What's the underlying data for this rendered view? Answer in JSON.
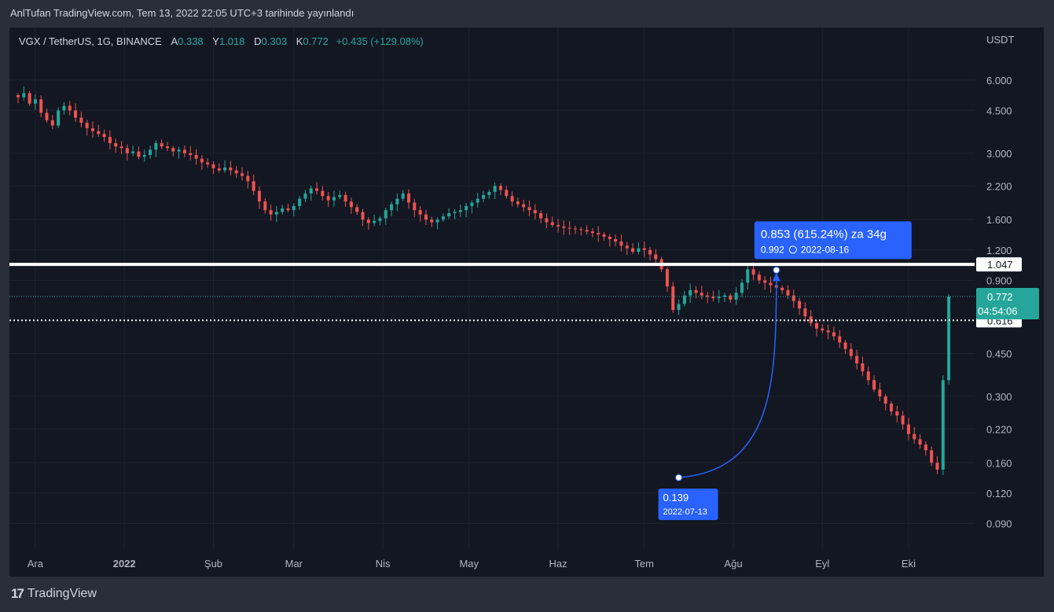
{
  "header": {
    "title": "AnlTufan TradingView.com, Tem 13, 2022 22:05 UTC+3 tarihinde yayınlandı"
  },
  "legend": {
    "symbol": "VGX / TetherUS, 1G, BINANCE",
    "open_label": "A",
    "open": "0.338",
    "high_label": "Y",
    "high": "1.018",
    "low_label": "D",
    "low": "0.303",
    "close_label": "K",
    "close": "0.772",
    "change": "+0.435 (+129.08%)"
  },
  "footer": {
    "logo_text": "TradingView",
    "logo_mark": "17"
  },
  "colors": {
    "up": "#26a69a",
    "down": "#ef5350",
    "background": "#131722",
    "grid": "#1e222d",
    "label_blue": "#2962ff",
    "text": "#d1d4dc"
  },
  "chart_data": {
    "type": "candlestick",
    "currency": "USDT",
    "scale": "log",
    "ylim": [
      0.082,
      8.5
    ],
    "y_ticks": [
      "6.000",
      "4.500",
      "3.000",
      "2.200",
      "1.600",
      "1.200",
      "0.900",
      "0.450",
      "0.300",
      "0.220",
      "0.160",
      "0.120",
      "0.090"
    ],
    "x_range": [
      "2021-11-22",
      "2022-10-24"
    ],
    "time_labels": [
      {
        "label": "Ara",
        "date": "2021-12-01"
      },
      {
        "label": "2022",
        "date": "2022-01-01"
      },
      {
        "label": "Şub",
        "date": "2022-02-01"
      },
      {
        "label": "Mar",
        "date": "2022-03-01"
      },
      {
        "label": "Nis",
        "date": "2022-04-01"
      },
      {
        "label": "May",
        "date": "2022-05-01"
      },
      {
        "label": "Haz",
        "date": "2022-06-01"
      },
      {
        "label": "Tem",
        "date": "2022-07-01"
      },
      {
        "label": "Ağu",
        "date": "2022-08-01"
      },
      {
        "label": "Eyl",
        "date": "2022-09-01"
      },
      {
        "label": "Eki",
        "date": "2022-10-01"
      }
    ],
    "start_date": "2021-11-25",
    "closes": [
      5.1,
      5.3,
      4.8,
      5.0,
      4.4,
      4.1,
      3.9,
      4.5,
      4.7,
      4.5,
      4.2,
      4.0,
      3.8,
      3.7,
      3.6,
      3.5,
      3.3,
      3.2,
      3.15,
      3.0,
      3.05,
      2.9,
      2.95,
      3.1,
      3.3,
      3.2,
      3.15,
      3.05,
      3.1,
      3.0,
      2.95,
      2.85,
      2.75,
      2.7,
      2.6,
      2.55,
      2.62,
      2.55,
      2.48,
      2.42,
      2.3,
      2.1,
      1.9,
      1.75,
      1.68,
      1.72,
      1.78,
      1.75,
      1.82,
      1.95,
      2.05,
      2.15,
      2.1,
      2.0,
      1.92,
      1.98,
      2.02,
      1.9,
      1.8,
      1.72,
      1.6,
      1.55,
      1.58,
      1.62,
      1.75,
      1.85,
      1.95,
      2.05,
      1.88,
      1.75,
      1.68,
      1.6,
      1.56,
      1.6,
      1.65,
      1.7,
      1.72,
      1.75,
      1.82,
      1.88,
      1.95,
      2.02,
      2.08,
      2.2,
      2.12,
      2.0,
      1.9,
      1.85,
      1.8,
      1.75,
      1.7,
      1.62,
      1.56,
      1.52,
      1.5,
      1.48,
      1.47,
      1.46,
      1.45,
      1.43,
      1.41,
      1.39,
      1.36,
      1.33,
      1.3,
      1.25,
      1.22,
      1.18,
      1.22,
      1.2,
      1.15,
      1.1,
      1.0,
      0.85,
      0.68,
      0.72,
      0.78,
      0.82,
      0.8,
      0.78,
      0.77,
      0.76,
      0.77,
      0.78,
      0.75,
      0.8,
      0.88,
      1.0,
      0.95,
      0.9,
      0.88,
      0.86,
      0.84,
      0.82,
      0.78,
      0.74,
      0.69,
      0.64,
      0.6,
      0.57,
      0.56,
      0.55,
      0.53,
      0.5,
      0.47,
      0.44,
      0.41,
      0.38,
      0.35,
      0.32,
      0.3,
      0.28,
      0.26,
      0.25,
      0.23,
      0.21,
      0.2,
      0.19,
      0.18,
      0.16,
      0.15,
      0.35,
      0.772
    ],
    "price_lines": [
      {
        "value": "1.047",
        "style": "solid"
      },
      {
        "value": "0.616",
        "style": "dotted"
      }
    ],
    "current_price": {
      "value": "0.772",
      "countdown": "04:54:06"
    },
    "projection": {
      "start_value": "0.139",
      "start_date": "2022-07-13",
      "end_value": "0.992",
      "end_date": "2022-08-16",
      "headline": "0.853 (615.24%) za 34g"
    }
  }
}
